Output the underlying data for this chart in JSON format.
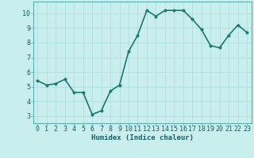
{
  "x": [
    0,
    1,
    2,
    3,
    4,
    5,
    6,
    7,
    8,
    9,
    10,
    11,
    12,
    13,
    14,
    15,
    16,
    17,
    18,
    19,
    20,
    21,
    22,
    23
  ],
  "y": [
    5.4,
    5.1,
    5.2,
    5.5,
    4.6,
    4.6,
    3.1,
    3.35,
    4.7,
    5.1,
    7.4,
    8.5,
    10.2,
    9.8,
    10.2,
    10.2,
    10.2,
    9.6,
    8.9,
    7.8,
    7.65,
    8.5,
    9.2,
    8.7
  ],
  "line_color": "#1a7a6e",
  "marker_color": "#1a7a6e",
  "bg_color": "#c8eeee",
  "grid_color": "#b0dede",
  "xlabel": "Humidex (Indice chaleur)",
  "xlim": [
    -0.5,
    23.5
  ],
  "ylim": [
    2.5,
    10.8
  ],
  "yticks": [
    3,
    4,
    5,
    6,
    7,
    8,
    9,
    10
  ],
  "xticks": [
    0,
    1,
    2,
    3,
    4,
    5,
    6,
    7,
    8,
    9,
    10,
    11,
    12,
    13,
    14,
    15,
    16,
    17,
    18,
    19,
    20,
    21,
    22,
    23
  ],
  "xlabel_fontsize": 6.5,
  "tick_fontsize": 6,
  "line_width": 1.2,
  "marker_size": 2.5
}
